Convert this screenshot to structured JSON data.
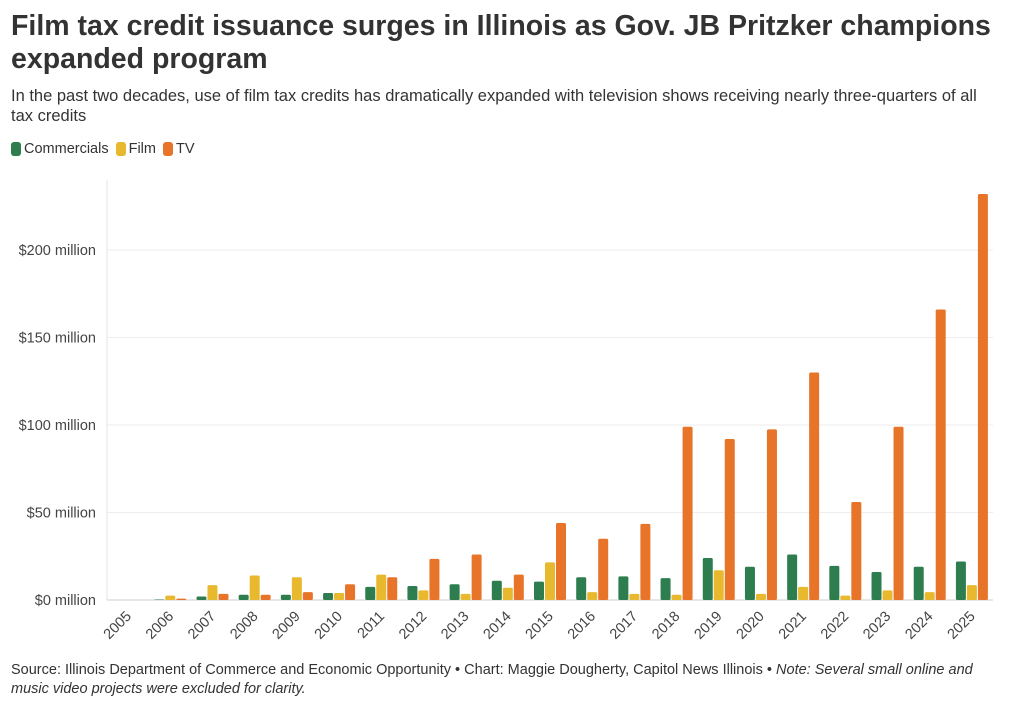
{
  "header": {
    "title": "Film tax credit issuance surges in Illinois as Gov. JB Pritzker champions expanded program",
    "subtitle": "In the past two decades, use of film tax credits has dramatically expanded with television shows receiving nearly three-quarters of all tax credits"
  },
  "footer": {
    "source": "Source: Illinois Department of Commerce and Economic Opportunity • Chart: Maggie Dougherty, Capitol News Illinois • ",
    "note": "Note: Several small online and music video projects were excluded for clarity."
  },
  "chart_data": {
    "type": "bar",
    "title": "Film tax credit issuance surges in Illinois as Gov. JB Pritzker champions expanded program",
    "subtitle": "In the past two decades, use of film tax credits has dramatically expanded with television shows receiving nearly three-quarters of all tax credits",
    "categories": [
      "2005",
      "2006",
      "2007",
      "2008",
      "2009",
      "2010",
      "2011",
      "2012",
      "2013",
      "2014",
      "2015",
      "2016",
      "2017",
      "2018",
      "2019",
      "2020",
      "2021",
      "2022",
      "2023",
      "2024",
      "2025"
    ],
    "series": [
      {
        "name": "Commercials",
        "color": "#2e7d4f",
        "values": [
          0,
          0.3,
          2,
          3,
          3,
          4,
          7.5,
          8,
          9,
          11,
          10.5,
          13,
          13.5,
          12.5,
          24,
          19,
          26,
          19.5,
          16,
          19,
          22
        ]
      },
      {
        "name": "Film",
        "color": "#e8b92e",
        "values": [
          0,
          2.5,
          8.5,
          14,
          13,
          4,
          14.5,
          5.5,
          3.5,
          7,
          21.5,
          4.5,
          3.5,
          3,
          17,
          3.5,
          7.5,
          2.5,
          5.5,
          4.5,
          8.5
        ]
      },
      {
        "name": "TV",
        "color": "#e8742a",
        "values": [
          0,
          0.8,
          3.5,
          3,
          4.5,
          9,
          13,
          23.5,
          26,
          14.5,
          44,
          35,
          43.5,
          99,
          92,
          97.5,
          130,
          56,
          99,
          166,
          232
        ]
      }
    ],
    "y_ticks": [
      0,
      50,
      100,
      150,
      200
    ],
    "y_tick_labels": [
      "$0 million",
      "$50 million",
      "$100 million",
      "$150 million",
      "$200 million"
    ],
    "ylim": [
      0,
      240
    ],
    "grid": "horizontal",
    "legend_placement": "top-left",
    "xlabel": "",
    "ylabel": ""
  }
}
